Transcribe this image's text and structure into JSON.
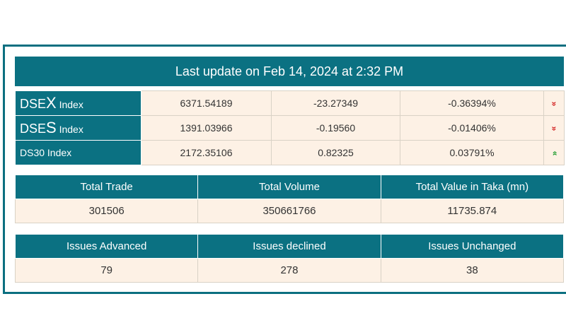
{
  "header": {
    "title": "Last update on Feb 14, 2024 at 2:32 PM"
  },
  "indices": [
    {
      "prefix": "DSE",
      "letter": "X",
      "suffix": "Index",
      "value": "6371.54189",
      "change": "-23.27349",
      "percent": "-0.36394%",
      "trend_icon": "double-chevron-down-icon",
      "trend_glyph": "»"
    },
    {
      "prefix": "DSE",
      "letter": "S",
      "suffix": "Index",
      "value": "1391.03966",
      "change": "-0.19560",
      "percent": "-0.01406%",
      "trend_icon": "double-chevron-down-icon",
      "trend_glyph": "»"
    },
    {
      "name": "DS30 Index",
      "value": "2172.35106",
      "change": "0.82325",
      "percent": "0.03791%",
      "trend_icon": "double-chevron-up-icon",
      "trend_glyph": "»"
    }
  ],
  "trade_stats": {
    "headers": [
      "Total Trade",
      "Total Volume",
      "Total Value in Taka (mn)"
    ],
    "values": [
      "301506",
      "350661766",
      "11735.874"
    ]
  },
  "issue_stats": {
    "headers": [
      "Issues Advanced",
      "Issues declined",
      "Issues Unchanged"
    ],
    "values": [
      "79",
      "278",
      "38"
    ]
  },
  "colors": {
    "accent": "#0b7182",
    "cell_bg": "#fdf1e5",
    "down": "#d21d1d",
    "up": "#1a9a2a"
  }
}
